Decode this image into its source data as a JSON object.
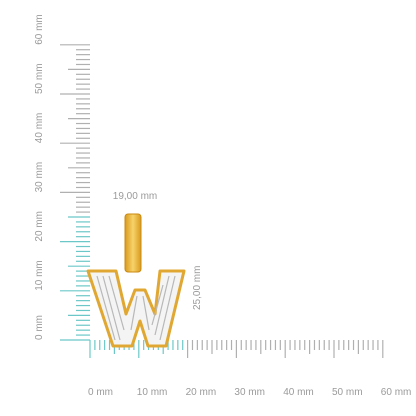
{
  "horizontal_ruler": {
    "labels": [
      "0 mm",
      "10 mm",
      "20 mm",
      "30 mm",
      "40 mm",
      "50 mm",
      "60 mm"
    ]
  },
  "vertical_ruler": {
    "labels": [
      "0 mm",
      "10 mm",
      "20 mm",
      "30 mm",
      "40 mm",
      "50 mm",
      "60 mm"
    ]
  },
  "dimensions": {
    "width": "19,00 mm",
    "height": "25,00 mm"
  }
}
